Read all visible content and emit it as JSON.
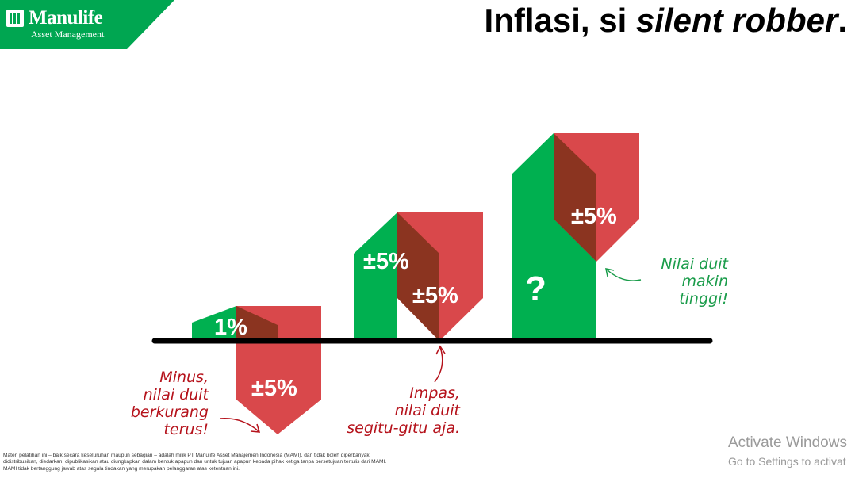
{
  "header": {
    "brand_name": "Manulife",
    "brand_sub": "Asset Management",
    "title_plain": "Inflasi, si ",
    "title_italic": "silent robber",
    "title_end": "."
  },
  "colors": {
    "green": "#00b050",
    "red": "#d9484b",
    "overlap": "#8b3420",
    "logo_green": "#00a651",
    "axis": "#000000"
  },
  "illustration": {
    "labels": {
      "first_green": "1%",
      "first_red": "±5%",
      "second_green": "±5%",
      "second_red": "±5%",
      "third_green": "?",
      "third_red": "±5%"
    },
    "notes": {
      "minus": "Minus,\nnilai duit\nberkurang\nterus!",
      "impas": "Impas,\nnilai duit\nsegitu-gitu aja.",
      "tinggi": "Nilai duit\nmakin\ntinggi!"
    }
  },
  "footer": {
    "disclaimer": "Materi pelatihan ini – baik secara keseluruhan maupun sebagian – adalah milik PT Manulife Asset Manajemen Indonesia (MAMI), dan tidak boleh diperbanyak, didistribusikan, diedarkan, dipublikasikan atau diungkapkan dalam bentuk apapun dan untuk tujuan apapun kepada pihak ketiga tanpa persetujuan tertulis dari MAMI. MAMI tidak bertanggung jawab atas segala tindakan yang merupakan pelanggaran atas ketentuan ini.",
    "watermark_title": "Activate Windows",
    "watermark_sub": "Go to Settings to activat"
  }
}
